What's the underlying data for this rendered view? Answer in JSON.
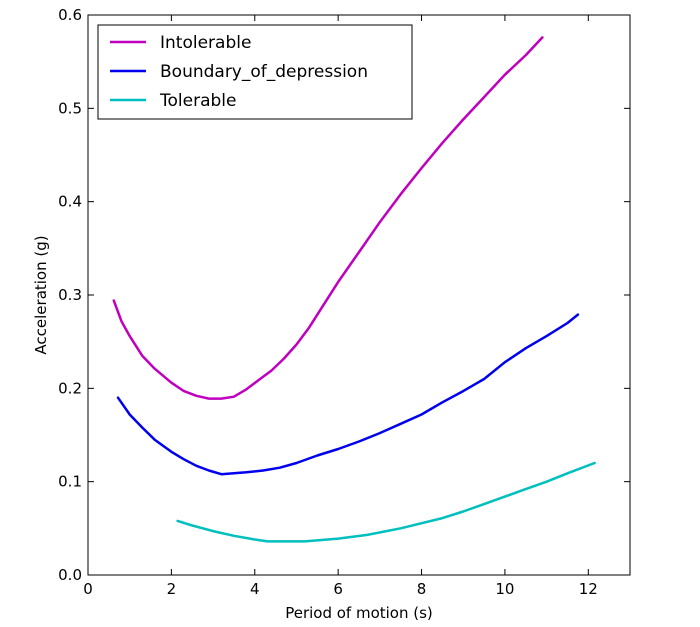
{
  "chart_data": {
    "type": "line",
    "title": "",
    "xlabel": "Period of motion (s)",
    "ylabel": "Acceleration (g)",
    "xlim": [
      0,
      13
    ],
    "ylim": [
      0,
      0.6
    ],
    "xticks": [
      0,
      2,
      4,
      6,
      8,
      10,
      12
    ],
    "yticks": [
      0.0,
      0.1,
      0.2,
      0.3,
      0.4,
      0.5,
      0.6
    ],
    "xtick_labels": [
      "0",
      "2",
      "4",
      "6",
      "8",
      "10",
      "12"
    ],
    "ytick_labels": [
      "0.0",
      "0.1",
      "0.2",
      "0.3",
      "0.4",
      "0.5",
      "0.6"
    ],
    "grid": false,
    "legend_position": "top-left",
    "series": [
      {
        "name": "Intolerable",
        "color": "#bf00bf",
        "x": [
          0.62,
          0.8,
          1.0,
          1.3,
          1.6,
          2.0,
          2.3,
          2.6,
          2.9,
          3.2,
          3.5,
          3.8,
          4.1,
          4.4,
          4.7,
          5.0,
          5.3,
          5.6,
          6.0,
          6.5,
          7.0,
          7.5,
          8.0,
          8.5,
          9.0,
          9.5,
          10.0,
          10.5,
          10.9
        ],
        "y": [
          0.294,
          0.272,
          0.256,
          0.235,
          0.221,
          0.206,
          0.197,
          0.192,
          0.189,
          0.189,
          0.191,
          0.199,
          0.209,
          0.219,
          0.232,
          0.247,
          0.265,
          0.286,
          0.314,
          0.346,
          0.378,
          0.408,
          0.436,
          0.463,
          0.488,
          0.512,
          0.536,
          0.557,
          0.576
        ]
      },
      {
        "name": "Boundary_of_depression",
        "color": "#0000ee",
        "x": [
          0.72,
          1.0,
          1.3,
          1.6,
          2.0,
          2.3,
          2.6,
          2.9,
          3.2,
          3.5,
          3.8,
          4.2,
          4.6,
          5.0,
          5.5,
          6.0,
          6.5,
          7.0,
          7.5,
          8.0,
          8.5,
          9.0,
          9.5,
          10.0,
          10.5,
          11.0,
          11.5,
          11.75
        ],
        "y": [
          0.19,
          0.172,
          0.158,
          0.145,
          0.132,
          0.124,
          0.117,
          0.112,
          0.108,
          0.109,
          0.11,
          0.112,
          0.115,
          0.12,
          0.128,
          0.135,
          0.143,
          0.152,
          0.162,
          0.172,
          0.185,
          0.197,
          0.21,
          0.228,
          0.243,
          0.256,
          0.27,
          0.279
        ]
      },
      {
        "name": "Tolerable",
        "color": "#00bfbf",
        "x": [
          2.15,
          2.5,
          3.0,
          3.5,
          4.0,
          4.3,
          4.7,
          5.2,
          6.0,
          6.7,
          7.5,
          8.5,
          9.0,
          9.5,
          10.0,
          10.5,
          11.0,
          11.5,
          12.15
        ],
        "y": [
          0.058,
          0.053,
          0.047,
          0.042,
          0.038,
          0.036,
          0.036,
          0.036,
          0.039,
          0.043,
          0.05,
          0.061,
          0.068,
          0.076,
          0.084,
          0.092,
          0.1,
          0.109,
          0.12
        ]
      }
    ]
  }
}
